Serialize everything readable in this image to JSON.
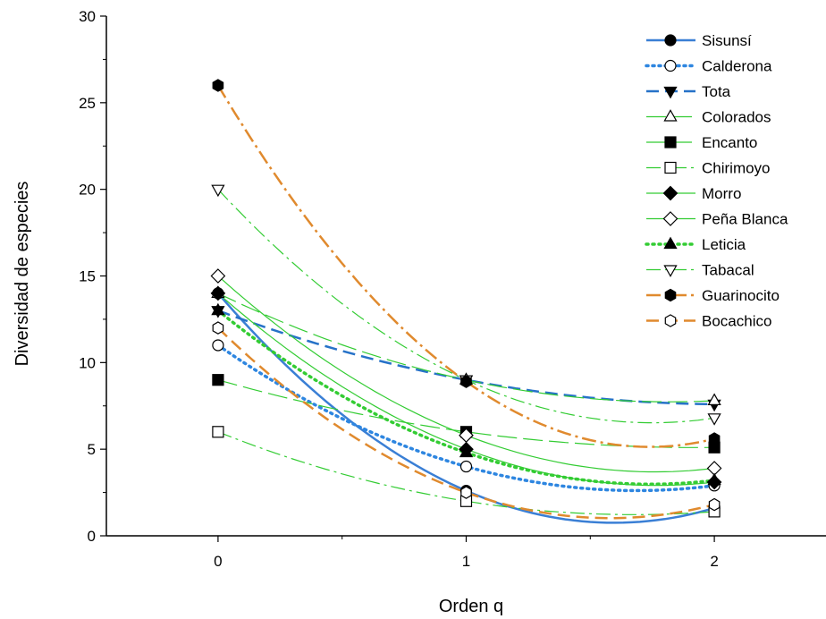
{
  "chart_data": {
    "type": "line",
    "xlabel": "Orden q",
    "ylabel": "Diversidad de especies",
    "x": [
      0,
      1,
      2
    ],
    "xlim": [
      -0.45,
      2.45
    ],
    "ylim": [
      0,
      30
    ],
    "xticks": [
      "0",
      "1",
      "2"
    ],
    "yticks": [
      "0",
      "5",
      "10",
      "15",
      "20",
      "25",
      "30"
    ],
    "grid": false,
    "legend_position": "top-right",
    "series": [
      {
        "name": "Sisunsí",
        "values": [
          14,
          2.6,
          1.6
        ],
        "color": "#3a7fd5",
        "dash": "solid",
        "width": 2.5,
        "marker": "circle",
        "filled": true
      },
      {
        "name": "Calderona",
        "values": [
          11,
          4.0,
          2.9
        ],
        "color": "#2e86e0",
        "dash": "dot",
        "width": 3.5,
        "marker": "circle",
        "filled": false
      },
      {
        "name": "Tota",
        "values": [
          13,
          9.0,
          7.6
        ],
        "color": "#2672c8",
        "dash": "dash",
        "width": 2.5,
        "marker": "triangle-down",
        "filled": true
      },
      {
        "name": "Colorados",
        "values": [
          14,
          9.0,
          7.8
        ],
        "color": "#33cc33",
        "dash": "longdash",
        "width": 1.2,
        "marker": "triangle-up",
        "filled": false
      },
      {
        "name": "Encanto",
        "values": [
          9,
          6.0,
          5.1
        ],
        "color": "#33cc33",
        "dash": "longdash",
        "width": 1.2,
        "marker": "square",
        "filled": true
      },
      {
        "name": "Chirimoyo",
        "values": [
          6,
          2.0,
          1.4
        ],
        "color": "#33cc33",
        "dash": "dashdot",
        "width": 1.2,
        "marker": "square",
        "filled": false
      },
      {
        "name": "Morro",
        "values": [
          14,
          5.0,
          3.1
        ],
        "color": "#33cc33",
        "dash": "solid",
        "width": 1.2,
        "marker": "diamond",
        "filled": true
      },
      {
        "name": "Peña Blanca",
        "values": [
          15,
          5.8,
          3.9
        ],
        "color": "#33cc33",
        "dash": "solid",
        "width": 1.2,
        "marker": "diamond",
        "filled": false
      },
      {
        "name": "Leticia",
        "values": [
          13,
          4.8,
          3.2
        ],
        "color": "#33cc33",
        "dash": "dot",
        "width": 3.5,
        "marker": "triangle-up",
        "filled": true
      },
      {
        "name": "Tabacal",
        "values": [
          20,
          9.0,
          6.8
        ],
        "color": "#33cc33",
        "dash": "dashdot",
        "width": 1.2,
        "marker": "triangle-down",
        "filled": false
      },
      {
        "name": "Guarinocito",
        "values": [
          26,
          8.9,
          5.6
        ],
        "color": "#e08a2e",
        "dash": "dashdot",
        "width": 2.5,
        "marker": "hexagon",
        "filled": true
      },
      {
        "name": "Bocachico",
        "values": [
          12,
          2.5,
          1.8
        ],
        "color": "#e08a2e",
        "dash": "dash",
        "width": 2.5,
        "marker": "hexagon",
        "filled": false
      }
    ]
  }
}
